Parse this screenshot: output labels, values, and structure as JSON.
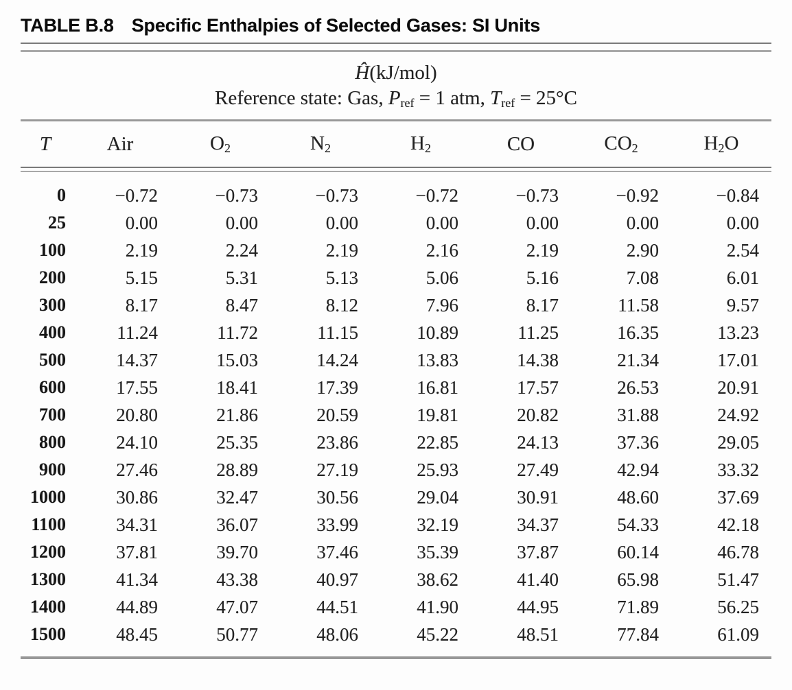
{
  "colors": {
    "background": "#fdfdfd",
    "text": "#222222",
    "rule": "#989898"
  },
  "title": {
    "label": "TABLE B.8",
    "text": "Specific Enthalpies of Selected Gases: SI Units"
  },
  "subheader": {
    "line1": [
      {
        "t": "Ĥ",
        "italic": true
      },
      {
        "t": "(kJ/mol)"
      }
    ],
    "line2": [
      {
        "t": "Reference state: Gas, "
      },
      {
        "t": "P",
        "italic": true
      },
      {
        "t": "ref",
        "sub": true
      },
      {
        "t": " = 1 atm, "
      },
      {
        "t": "T",
        "italic": true
      },
      {
        "t": "ref",
        "sub": true
      },
      {
        "t": " = 25°C"
      }
    ]
  },
  "table": {
    "columns": [
      {
        "name": "T",
        "segments": [
          {
            "t": "T",
            "italic": true
          }
        ]
      },
      {
        "name": "Air",
        "segments": [
          {
            "t": "Air"
          }
        ]
      },
      {
        "name": "O2",
        "segments": [
          {
            "t": "O"
          },
          {
            "t": "2",
            "sub": true
          }
        ]
      },
      {
        "name": "N2",
        "segments": [
          {
            "t": "N"
          },
          {
            "t": "2",
            "sub": true
          }
        ]
      },
      {
        "name": "H2",
        "segments": [
          {
            "t": "H"
          },
          {
            "t": "2",
            "sub": true
          }
        ]
      },
      {
        "name": "CO",
        "segments": [
          {
            "t": "CO"
          }
        ]
      },
      {
        "name": "CO2",
        "segments": [
          {
            "t": "CO"
          },
          {
            "t": "2",
            "sub": true
          }
        ]
      },
      {
        "name": "H2O",
        "segments": [
          {
            "t": "H"
          },
          {
            "t": "2",
            "sub": true
          },
          {
            "t": "O"
          }
        ]
      }
    ],
    "rows": [
      {
        "T": "0",
        "values": [
          "−0.72",
          "−0.73",
          "−0.73",
          "−0.72",
          "−0.73",
          "−0.92",
          "−0.84"
        ]
      },
      {
        "T": "25",
        "values": [
          "0.00",
          "0.00",
          "0.00",
          "0.00",
          "0.00",
          "0.00",
          "0.00"
        ]
      },
      {
        "T": "100",
        "values": [
          "2.19",
          "2.24",
          "2.19",
          "2.16",
          "2.19",
          "2.90",
          "2.54"
        ]
      },
      {
        "T": "200",
        "values": [
          "5.15",
          "5.31",
          "5.13",
          "5.06",
          "5.16",
          "7.08",
          "6.01"
        ]
      },
      {
        "T": "300",
        "values": [
          "8.17",
          "8.47",
          "8.12",
          "7.96",
          "8.17",
          "11.58",
          "9.57"
        ]
      },
      {
        "T": "400",
        "values": [
          "11.24",
          "11.72",
          "11.15",
          "10.89",
          "11.25",
          "16.35",
          "13.23"
        ]
      },
      {
        "T": "500",
        "values": [
          "14.37",
          "15.03",
          "14.24",
          "13.83",
          "14.38",
          "21.34",
          "17.01"
        ]
      },
      {
        "T": "600",
        "values": [
          "17.55",
          "18.41",
          "17.39",
          "16.81",
          "17.57",
          "26.53",
          "20.91"
        ]
      },
      {
        "T": "700",
        "values": [
          "20.80",
          "21.86",
          "20.59",
          "19.81",
          "20.82",
          "31.88",
          "24.92"
        ]
      },
      {
        "T": "800",
        "values": [
          "24.10",
          "25.35",
          "23.86",
          "22.85",
          "24.13",
          "37.36",
          "29.05"
        ]
      },
      {
        "T": "900",
        "values": [
          "27.46",
          "28.89",
          "27.19",
          "25.93",
          "27.49",
          "42.94",
          "33.32"
        ]
      },
      {
        "T": "1000",
        "values": [
          "30.86",
          "32.47",
          "30.56",
          "29.04",
          "30.91",
          "48.60",
          "37.69"
        ]
      },
      {
        "T": "1100",
        "values": [
          "34.31",
          "36.07",
          "33.99",
          "32.19",
          "34.37",
          "54.33",
          "42.18"
        ]
      },
      {
        "T": "1200",
        "values": [
          "37.81",
          "39.70",
          "37.46",
          "35.39",
          "37.87",
          "60.14",
          "46.78"
        ]
      },
      {
        "T": "1300",
        "values": [
          "41.34",
          "43.38",
          "40.97",
          "38.62",
          "41.40",
          "65.98",
          "51.47"
        ]
      },
      {
        "T": "1400",
        "values": [
          "44.89",
          "47.07",
          "44.51",
          "41.90",
          "44.95",
          "71.89",
          "56.25"
        ]
      },
      {
        "T": "1500",
        "values": [
          "48.45",
          "50.77",
          "48.06",
          "45.22",
          "48.51",
          "77.84",
          "61.09"
        ]
      }
    ]
  }
}
